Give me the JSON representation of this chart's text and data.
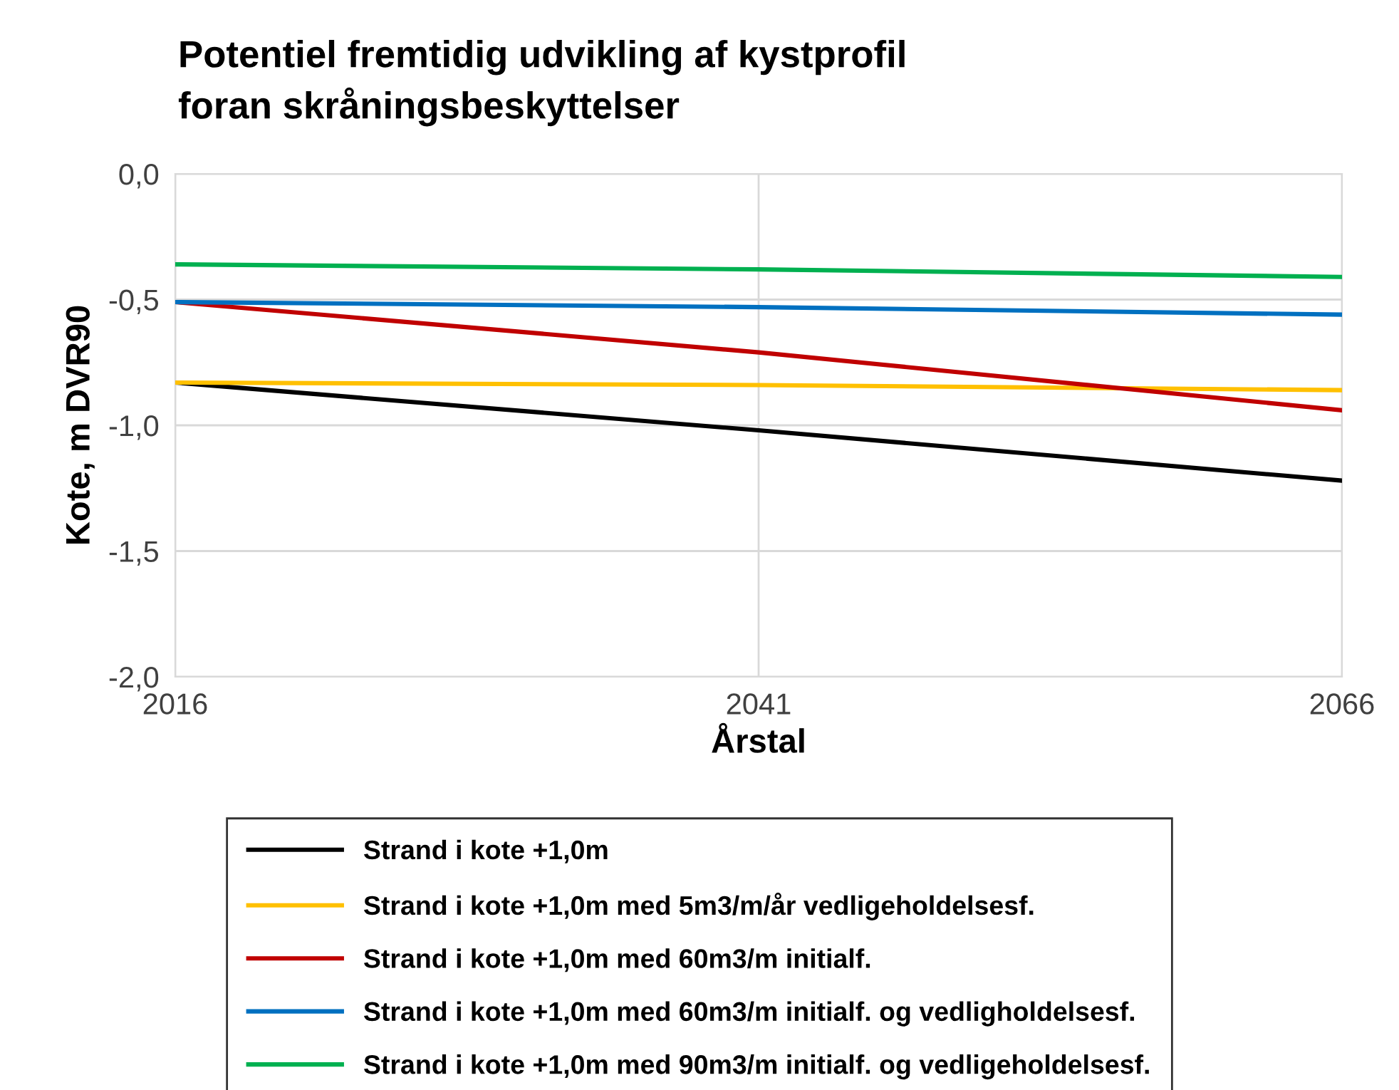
{
  "chart_data": {
    "type": "line",
    "title": "Potentiel fremtidig udvikling af kystprofil\nforan skråningsbeskyttelser",
    "xlabel": "Årstal",
    "ylabel": "Kote, m DVR90",
    "x": [
      2016,
      2041,
      2066
    ],
    "series": [
      {
        "name": "Strand i kote +1,0m",
        "color": "#000000",
        "values": [
          -0.83,
          -1.02,
          -1.22
        ]
      },
      {
        "name": "Strand i kote +1,0m med 5m3/m/år vedligeholdelsesf.",
        "color": "#ffc000",
        "values": [
          -0.83,
          -0.84,
          -0.86
        ]
      },
      {
        "name": "Strand i kote +1,0m med 60m3/m initialf.",
        "color": "#c00000",
        "values": [
          -0.51,
          -0.71,
          -0.94
        ]
      },
      {
        "name": "Strand i kote +1,0m med 60m3/m initialf. og vedligholdelsesf.",
        "color": "#0070c0",
        "values": [
          -0.51,
          -0.53,
          -0.56
        ]
      },
      {
        "name": "Strand i kote +1,0m med 90m3/m initialf. og vedligeholdelsesf.",
        "color": "#00b050",
        "values": [
          -0.36,
          -0.38,
          -0.41
        ]
      }
    ],
    "xlim": [
      2016,
      2066
    ],
    "xticks": [
      2016,
      2041,
      2066
    ],
    "ylim": [
      -2.0,
      0.0
    ],
    "yticks": [
      {
        "value": 0.0,
        "label": "0,0"
      },
      {
        "value": -0.5,
        "label": "-0,5"
      },
      {
        "value": -1.0,
        "label": "-1,0"
      },
      {
        "value": -1.5,
        "label": "-1,5"
      },
      {
        "value": -2.0,
        "label": "-2,0"
      }
    ],
    "grid": true,
    "legend": "bottom",
    "marker": "none",
    "line_style": "solid"
  }
}
